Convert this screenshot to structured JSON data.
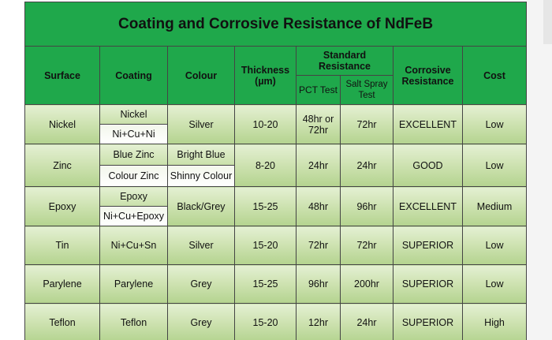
{
  "title": "Coating and Corrosive Resistance of NdFeB",
  "headers": {
    "surface": "Surface",
    "coating": "Coating",
    "colour": "Colour",
    "thickness": "Thickness (µm)",
    "standard_resistance": "Standard Resistance",
    "pct_test": "PCT Test",
    "salt_spray_test": "Salt Spray Test",
    "corrosive_resistance": "Corrosive Resistance",
    "cost": "Cost"
  },
  "rows": [
    {
      "surface": "Nickel",
      "coatings": [
        "Nickel",
        "Ni+Cu+Ni"
      ],
      "colours": [
        "Silver"
      ],
      "thickness": "10-20",
      "pct": "48hr or 72hr",
      "salt": "72hr",
      "resistance": "EXCELLENT",
      "cost": "Low"
    },
    {
      "surface": "Zinc",
      "coatings": [
        "Blue Zinc",
        "Colour Zinc"
      ],
      "colours": [
        "Bright Blue",
        "Shinny Colour"
      ],
      "thickness": "8-20",
      "pct": "24hr",
      "salt": "24hr",
      "resistance": "GOOD",
      "cost": "Low"
    },
    {
      "surface": "Epoxy",
      "coatings": [
        "Epoxy",
        "Ni+Cu+Epoxy"
      ],
      "colours": [
        "Black/Grey"
      ],
      "thickness": "15-25",
      "pct": "48hr",
      "salt": "96hr",
      "resistance": "EXCELLENT",
      "cost": "Medium"
    },
    {
      "surface": "Tin",
      "coatings": [
        "Ni+Cu+Sn"
      ],
      "colours": [
        "Silver"
      ],
      "thickness": "15-20",
      "pct": "72hr",
      "salt": "72hr",
      "resistance": "SUPERIOR",
      "cost": "Low"
    },
    {
      "surface": "Parylene",
      "coatings": [
        "Parylene"
      ],
      "colours": [
        "Grey"
      ],
      "thickness": "15-25",
      "pct": "96hr",
      "salt": "200hr",
      "resistance": "SUPERIOR",
      "cost": "Low"
    },
    {
      "surface": "Teflon",
      "coatings": [
        "Teflon"
      ],
      "colours": [
        "Grey"
      ],
      "thickness": "15-20",
      "pct": "12hr",
      "salt": "24hr",
      "resistance": "SUPERIOR",
      "cost": "High"
    }
  ],
  "colors": {
    "header_green": "#1fa84b",
    "row_gradient_top": "#e4f0d3",
    "row_gradient_bottom": "#b4d38f"
  }
}
